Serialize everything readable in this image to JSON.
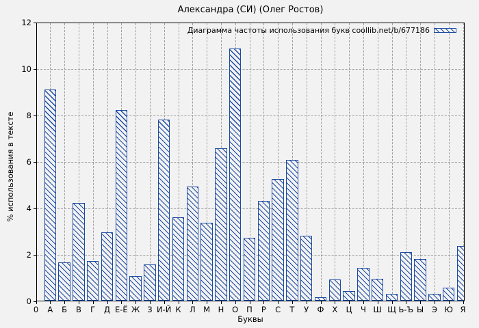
{
  "title": "Александра (СИ) (Олег Ростов)",
  "legend_label": "Диаграмма частоты использования букв coollib.net/b/677186",
  "axes": {
    "ylabel": "% использования в тексте",
    "xlabel": "Буквы",
    "origin_tick": "0"
  },
  "colors": {
    "bar_outline": "#1b4aa2",
    "background": "#f2f2f2",
    "grid": "#9f9f9f",
    "frame": "#000000"
  },
  "chart_data": {
    "type": "bar",
    "title": "Александра (СИ) (Олег Ростов)",
    "legend": [
      "Диаграмма частоты использования букв coollib.net/b/677186"
    ],
    "legend_position": "top-right-inside",
    "grid": true,
    "bar_style": "diagonal-hatch",
    "xlabel": "Буквы",
    "ylabel": "% использования в тексте",
    "ylim": [
      0,
      12
    ],
    "y_ticks": [
      0,
      2,
      4,
      6,
      8,
      10,
      12
    ],
    "categories": [
      "А",
      "Б",
      "В",
      "Г",
      "Д",
      "Е-Ё",
      "Ж",
      "З",
      "И-Й",
      "К",
      "Л",
      "М",
      "Н",
      "О",
      "П",
      "Р",
      "С",
      "Т",
      "У",
      "Ф",
      "Х",
      "Ц",
      "Ч",
      "Ш",
      "Щ",
      "Ь-Ъ",
      "Ы",
      "Э",
      "Ю",
      "Я"
    ],
    "values": [
      9.1,
      1.65,
      4.2,
      1.7,
      2.95,
      8.2,
      1.05,
      1.55,
      7.8,
      3.6,
      4.9,
      3.35,
      6.55,
      10.85,
      2.7,
      4.3,
      5.25,
      6.05,
      2.8,
      0.15,
      0.9,
      0.4,
      1.4,
      0.95,
      0.3,
      2.1,
      1.8,
      0.3,
      0.55,
      2.35
    ]
  }
}
